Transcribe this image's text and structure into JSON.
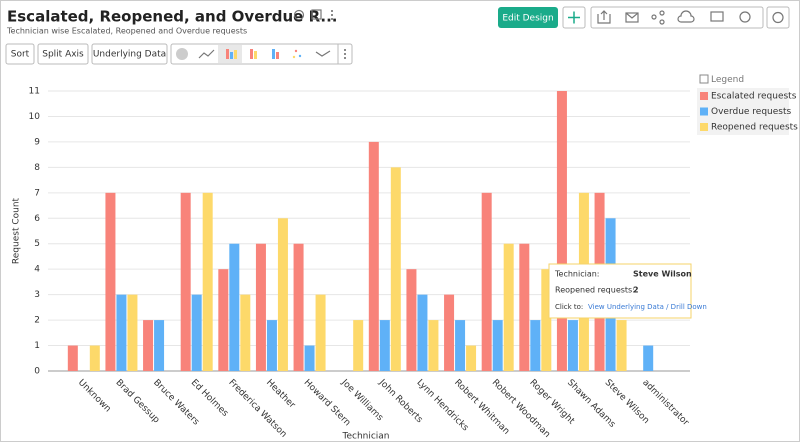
{
  "header": {
    "title": "Escalated, Reopened, and Overdue R...",
    "subtitle": "Technician wise Escalated, Reopened and Overdue requests",
    "edit_button": "Edit Design"
  },
  "toolbar": {
    "buttons": [
      "Sort",
      "Split Axis",
      "Underlying Data"
    ]
  },
  "chart_data": {
    "type": "bar",
    "y_axis_title": "Request Count",
    "x_axis_title": "Technician",
    "categories": [
      "Unknown",
      "Brad Gessup",
      "Bruce Waters",
      "Ed Holmes",
      "Frederica Watson",
      "Heather",
      "Howard Stern",
      "Joe Williams",
      "John Roberts",
      "Lynn Hendricks",
      "Robert Whitman",
      "Robert Woodman",
      "Roger Wright",
      "Shawn Adams",
      "Steve Wilson",
      "administrator"
    ],
    "series": [
      {
        "name": "Escalated requests",
        "color": "#f8837a",
        "values": [
          1,
          7,
          2,
          7,
          4,
          5,
          5,
          null,
          9,
          4,
          3,
          7,
          5,
          11,
          7,
          null
        ]
      },
      {
        "name": "Overdue requests",
        "color": "#5fb1f7",
        "values": [
          null,
          3,
          2,
          3,
          5,
          2,
          1,
          null,
          2,
          3,
          2,
          2,
          2,
          2,
          6,
          1
        ]
      },
      {
        "name": "Reopened requests",
        "color": "#fdd96a",
        "values": [
          1,
          3,
          null,
          7,
          3,
          6,
          3,
          2,
          8,
          2,
          1,
          5,
          4,
          7,
          2,
          null
        ]
      }
    ],
    "ylim": [
      0,
      11
    ],
    "yticks": [
      0,
      1,
      2,
      3,
      4,
      5,
      6,
      7,
      8,
      9,
      10,
      11
    ],
    "grid": true,
    "legend_title": "Legend",
    "legend_position": "right"
  },
  "tooltip": {
    "label": "Technician:",
    "name": "Steve Wilson",
    "metric": "Reopened requests:",
    "value": "2",
    "action_label": "Click to:",
    "action": "View Underlying Data / Drill Down"
  }
}
